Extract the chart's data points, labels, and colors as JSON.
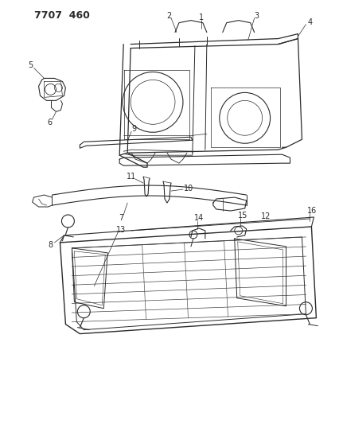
{
  "title_code": "7707 460",
  "bg": "#ffffff",
  "lc": "#2a2a2a",
  "fig_w": 4.27,
  "fig_h": 5.33,
  "dpi": 100
}
